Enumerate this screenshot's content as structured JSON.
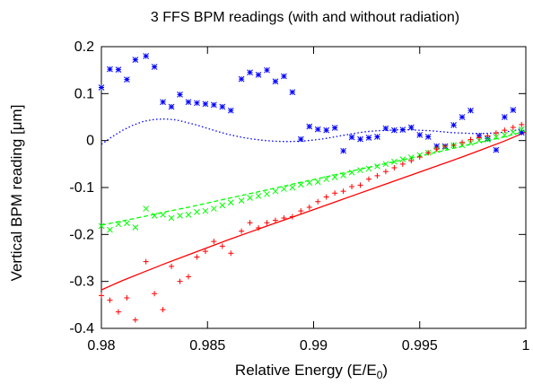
{
  "chart_data": {
    "type": "scatter",
    "title": "3 FFS BPM readings (with and without radiation)",
    "xlabel": "Relative Energy (E/E",
    "xlabel_sub": "0",
    "xlabel_close": ")",
    "ylabel": "Vertical BPM reading [μm]",
    "xlim": [
      0.98,
      1.0
    ],
    "ylim": [
      -0.4,
      0.2
    ],
    "xticks": [
      0.98,
      0.985,
      0.99,
      0.995,
      1
    ],
    "xtick_labels": [
      "0.98",
      "0.985",
      "0.99",
      "0.995",
      "1"
    ],
    "yticks": [
      -0.4,
      -0.3,
      -0.2,
      -0.1,
      0,
      0.1,
      0.2
    ],
    "ytick_labels": [
      "-0.4",
      "-0.3",
      "-0.2",
      "-0.1",
      "0",
      "0.1",
      "0.2"
    ],
    "grid": false,
    "legend": "none",
    "series": [
      {
        "color": "#0000ff",
        "marker": "star",
        "points": [
          [
            0.98,
            0.113
          ],
          [
            0.9804,
            0.152
          ],
          [
            0.9808,
            0.151
          ],
          [
            0.9812,
            0.13
          ],
          [
            0.9816,
            0.172
          ],
          [
            0.9821,
            0.18
          ],
          [
            0.9825,
            0.157
          ],
          [
            0.9829,
            0.082
          ],
          [
            0.9833,
            0.072
          ],
          [
            0.9837,
            0.098
          ],
          [
            0.9841,
            0.082
          ],
          [
            0.9845,
            0.08
          ],
          [
            0.9849,
            0.078
          ],
          [
            0.9853,
            0.076
          ],
          [
            0.9857,
            0.072
          ],
          [
            0.9861,
            0.064
          ],
          [
            0.9866,
            0.131
          ],
          [
            0.987,
            0.145
          ],
          [
            0.9874,
            0.14
          ],
          [
            0.9878,
            0.15
          ],
          [
            0.9882,
            0.126
          ],
          [
            0.9886,
            0.137
          ],
          [
            0.989,
            0.103
          ],
          [
            0.9894,
            0.003
          ],
          [
            0.9898,
            0.03
          ],
          [
            0.9902,
            0.024
          ],
          [
            0.9906,
            0.022
          ],
          [
            0.991,
            0.027
          ],
          [
            0.9914,
            -0.022
          ],
          [
            0.9918,
            0.007
          ],
          [
            0.9922,
            0.003
          ],
          [
            0.9926,
            0.006
          ],
          [
            0.993,
            0.008
          ],
          [
            0.9934,
            0.026
          ],
          [
            0.9938,
            0.022
          ],
          [
            0.9942,
            0.023
          ],
          [
            0.9946,
            0.028
          ],
          [
            0.995,
            0.012
          ],
          [
            0.9954,
            0.008
          ],
          [
            0.9958,
            -0.012
          ],
          [
            0.9962,
            -0.012
          ],
          [
            0.9966,
            0.033
          ],
          [
            0.997,
            0.05
          ],
          [
            0.9974,
            0.064
          ],
          [
            0.9978,
            0.01
          ],
          [
            0.9982,
            0.004
          ],
          [
            0.9986,
            -0.02
          ],
          [
            0.999,
            0.05
          ],
          [
            0.9994,
            0.065
          ],
          [
            0.9998,
            0.017
          ]
        ],
        "fit": [
          [
            0.98,
            -0.008
          ],
          [
            0.9805,
            0.008
          ],
          [
            0.981,
            0.022
          ],
          [
            0.9815,
            0.033
          ],
          [
            0.982,
            0.041
          ],
          [
            0.9825,
            0.045
          ],
          [
            0.983,
            0.046
          ],
          [
            0.9835,
            0.044
          ],
          [
            0.984,
            0.039
          ],
          [
            0.9845,
            0.033
          ],
          [
            0.985,
            0.026
          ],
          [
            0.9855,
            0.019
          ],
          [
            0.986,
            0.013
          ],
          [
            0.9865,
            0.008
          ],
          [
            0.987,
            0.004
          ],
          [
            0.9875,
            0.001
          ],
          [
            0.988,
            -0.001
          ],
          [
            0.9885,
            -0.002
          ],
          [
            0.989,
            -0.002
          ],
          [
            0.9895,
            -0.001
          ],
          [
            0.99,
            0.001
          ],
          [
            0.9905,
            0.004
          ],
          [
            0.991,
            0.008
          ],
          [
            0.9915,
            0.012
          ],
          [
            0.992,
            0.016
          ],
          [
            0.9925,
            0.019
          ],
          [
            0.993,
            0.021
          ],
          [
            0.9935,
            0.022
          ],
          [
            0.994,
            0.023
          ],
          [
            0.9945,
            0.023
          ],
          [
            0.995,
            0.022
          ],
          [
            0.9955,
            0.021
          ],
          [
            0.996,
            0.019
          ],
          [
            0.9965,
            0.017
          ],
          [
            0.997,
            0.016
          ],
          [
            0.9975,
            0.015
          ],
          [
            0.998,
            0.015
          ],
          [
            0.9985,
            0.016
          ],
          [
            0.999,
            0.018
          ],
          [
            0.9995,
            0.022
          ],
          [
            1.0,
            0.028
          ]
        ]
      },
      {
        "color": "#00ff00",
        "marker": "x",
        "points": [
          [
            0.98,
            -0.182
          ],
          [
            0.9804,
            -0.19
          ],
          [
            0.9808,
            -0.178
          ],
          [
            0.9812,
            -0.176
          ],
          [
            0.9816,
            -0.185
          ],
          [
            0.9821,
            -0.145
          ],
          [
            0.9825,
            -0.16
          ],
          [
            0.9829,
            -0.158
          ],
          [
            0.9833,
            -0.165
          ],
          [
            0.9837,
            -0.16
          ],
          [
            0.9841,
            -0.158
          ],
          [
            0.9845,
            -0.152
          ],
          [
            0.9849,
            -0.15
          ],
          [
            0.9853,
            -0.145
          ],
          [
            0.9857,
            -0.138
          ],
          [
            0.9861,
            -0.132
          ],
          [
            0.9866,
            -0.128
          ],
          [
            0.987,
            -0.122
          ],
          [
            0.9874,
            -0.118
          ],
          [
            0.9878,
            -0.114
          ],
          [
            0.9882,
            -0.108
          ],
          [
            0.9886,
            -0.103
          ],
          [
            0.989,
            -0.1
          ],
          [
            0.9894,
            -0.094
          ],
          [
            0.9898,
            -0.09
          ],
          [
            0.9902,
            -0.088
          ],
          [
            0.9906,
            -0.082
          ],
          [
            0.991,
            -0.078
          ],
          [
            0.9914,
            -0.074
          ],
          [
            0.9918,
            -0.068
          ],
          [
            0.9922,
            -0.063
          ],
          [
            0.9926,
            -0.06
          ],
          [
            0.993,
            -0.055
          ],
          [
            0.9934,
            -0.05
          ],
          [
            0.9938,
            -0.045
          ],
          [
            0.9942,
            -0.04
          ],
          [
            0.9946,
            -0.036
          ],
          [
            0.995,
            -0.031
          ],
          [
            0.9954,
            -0.026
          ],
          [
            0.9958,
            -0.02
          ],
          [
            0.9962,
            -0.015
          ],
          [
            0.9966,
            -0.01
          ],
          [
            0.997,
            -0.01
          ],
          [
            0.9974,
            -0.005
          ],
          [
            0.9978,
            0.0
          ],
          [
            0.9982,
            0.002
          ],
          [
            0.9986,
            0.008
          ],
          [
            0.999,
            0.012
          ],
          [
            0.9994,
            0.018
          ],
          [
            0.9998,
            0.024
          ]
        ],
        "fit": [
          [
            0.98,
            -0.18
          ],
          [
            0.981,
            -0.171
          ],
          [
            0.982,
            -0.162
          ],
          [
            0.983,
            -0.152
          ],
          [
            0.984,
            -0.143
          ],
          [
            0.985,
            -0.133
          ],
          [
            0.986,
            -0.123
          ],
          [
            0.987,
            -0.113
          ],
          [
            0.988,
            -0.103
          ],
          [
            0.989,
            -0.093
          ],
          [
            0.99,
            -0.083
          ],
          [
            0.991,
            -0.073
          ],
          [
            0.992,
            -0.063
          ],
          [
            0.993,
            -0.053
          ],
          [
            0.994,
            -0.043
          ],
          [
            0.995,
            -0.033
          ],
          [
            0.996,
            -0.023
          ],
          [
            0.997,
            -0.012
          ],
          [
            0.998,
            -0.002
          ],
          [
            0.999,
            0.008
          ],
          [
            1.0,
            0.02
          ]
        ]
      },
      {
        "color": "#ff0000",
        "marker": "plus",
        "points": [
          [
            0.98,
            -0.33
          ],
          [
            0.9804,
            -0.34
          ],
          [
            0.9808,
            -0.365
          ],
          [
            0.9812,
            -0.335
          ],
          [
            0.9816,
            -0.382
          ],
          [
            0.9821,
            -0.258
          ],
          [
            0.9825,
            -0.326
          ],
          [
            0.9829,
            -0.36
          ],
          [
            0.9833,
            -0.268
          ],
          [
            0.9837,
            -0.3
          ],
          [
            0.9841,
            -0.29
          ],
          [
            0.9845,
            -0.248
          ],
          [
            0.9849,
            -0.236
          ],
          [
            0.9853,
            -0.215
          ],
          [
            0.9857,
            -0.225
          ],
          [
            0.9861,
            -0.24
          ],
          [
            0.9866,
            -0.193
          ],
          [
            0.987,
            -0.175
          ],
          [
            0.9874,
            -0.186
          ],
          [
            0.9878,
            -0.175
          ],
          [
            0.9882,
            -0.17
          ],
          [
            0.9886,
            -0.165
          ],
          [
            0.989,
            -0.162
          ],
          [
            0.9894,
            -0.15
          ],
          [
            0.9898,
            -0.142
          ],
          [
            0.9902,
            -0.13
          ],
          [
            0.9906,
            -0.12
          ],
          [
            0.991,
            -0.112
          ],
          [
            0.9914,
            -0.108
          ],
          [
            0.9918,
            -0.098
          ],
          [
            0.9922,
            -0.095
          ],
          [
            0.9926,
            -0.082
          ],
          [
            0.993,
            -0.075
          ],
          [
            0.9934,
            -0.066
          ],
          [
            0.9938,
            -0.058
          ],
          [
            0.9942,
            -0.05
          ],
          [
            0.9946,
            -0.043
          ],
          [
            0.995,
            -0.035
          ],
          [
            0.9954,
            -0.026
          ],
          [
            0.9958,
            -0.018
          ],
          [
            0.9962,
            -0.012
          ],
          [
            0.9966,
            -0.01
          ],
          [
            0.997,
            -0.004
          ],
          [
            0.9974,
            0.002
          ],
          [
            0.9978,
            0.006
          ],
          [
            0.9982,
            0.01
          ],
          [
            0.9986,
            0.016
          ],
          [
            0.999,
            0.022
          ],
          [
            0.9994,
            0.028
          ],
          [
            0.9998,
            0.034
          ]
        ],
        "fit": [
          [
            0.98,
            -0.318
          ],
          [
            0.981,
            -0.298
          ],
          [
            0.982,
            -0.28
          ],
          [
            0.983,
            -0.262
          ],
          [
            0.984,
            -0.245
          ],
          [
            0.985,
            -0.228
          ],
          [
            0.986,
            -0.211
          ],
          [
            0.987,
            -0.195
          ],
          [
            0.988,
            -0.179
          ],
          [
            0.989,
            -0.163
          ],
          [
            0.99,
            -0.147
          ],
          [
            0.991,
            -0.131
          ],
          [
            0.992,
            -0.115
          ],
          [
            0.993,
            -0.099
          ],
          [
            0.994,
            -0.083
          ],
          [
            0.995,
            -0.067
          ],
          [
            0.996,
            -0.051
          ],
          [
            0.997,
            -0.035
          ],
          [
            0.998,
            -0.018
          ],
          [
            0.999,
            -0.001
          ],
          [
            1.0,
            0.018
          ]
        ]
      }
    ]
  }
}
